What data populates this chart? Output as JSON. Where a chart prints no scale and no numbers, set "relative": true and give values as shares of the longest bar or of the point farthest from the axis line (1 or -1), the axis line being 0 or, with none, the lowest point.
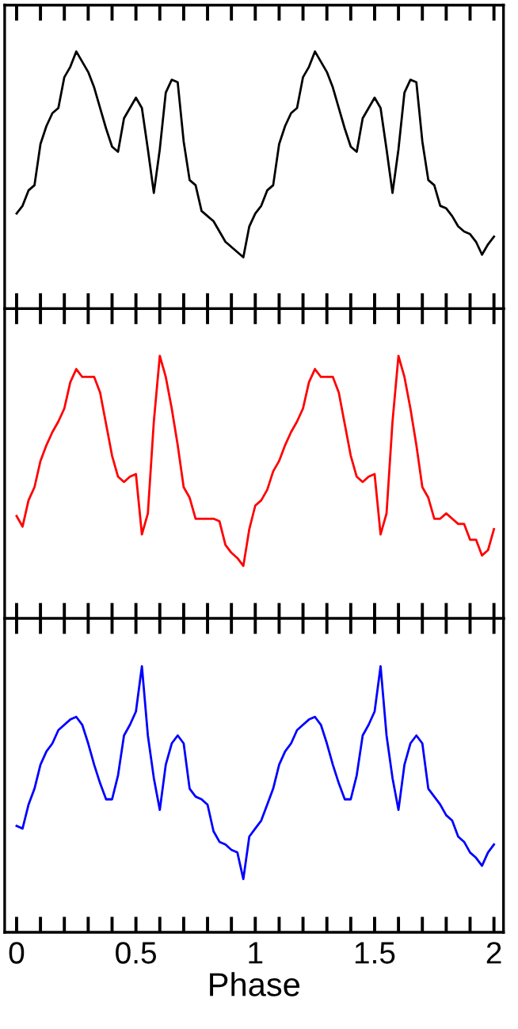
{
  "chart_data": [
    {
      "type": "line",
      "relative": true,
      "tick_labels": false,
      "grid": false,
      "legend": false,
      "marker": "none",
      "line_style": "solid",
      "xlim": [
        -0.05,
        2.04
      ],
      "xticks": [
        {
          "value": 0,
          "label": null
        },
        {
          "value": 0.1,
          "label": null
        },
        {
          "value": 0.2,
          "label": null
        },
        {
          "value": 0.3,
          "label": null
        },
        {
          "value": 0.4,
          "label": null
        },
        {
          "value": 0.5,
          "label": null
        },
        {
          "value": 0.6,
          "label": null
        },
        {
          "value": 0.7,
          "label": null
        },
        {
          "value": 0.8,
          "label": null
        },
        {
          "value": 0.9,
          "label": null
        },
        {
          "value": 1,
          "label": null
        },
        {
          "value": 1.1,
          "label": null
        },
        {
          "value": 1.2,
          "label": null
        },
        {
          "value": 1.3,
          "label": null
        },
        {
          "value": 1.4,
          "label": null
        },
        {
          "value": 1.5,
          "label": null
        },
        {
          "value": 1.6,
          "label": null
        },
        {
          "value": 1.7,
          "label": null
        },
        {
          "value": 1.8,
          "label": null
        },
        {
          "value": 1.9,
          "label": null
        },
        {
          "value": 2,
          "label": null
        }
      ],
      "x": [
        0,
        0.025,
        0.05,
        0.075,
        0.1,
        0.125,
        0.15,
        0.175,
        0.2,
        0.225,
        0.25,
        0.275,
        0.3,
        0.325,
        0.35,
        0.375,
        0.4,
        0.425,
        0.45,
        0.475,
        0.5,
        0.525,
        0.55,
        0.575,
        0.6,
        0.625,
        0.65,
        0.675,
        0.7,
        0.725,
        0.75,
        0.775,
        0.8,
        0.825,
        0.85,
        0.875,
        0.9,
        0.925,
        0.95,
        0.975,
        1,
        1.025,
        1.05,
        1.075,
        1.1,
        1.125,
        1.15,
        1.175,
        1.2,
        1.225,
        1.25,
        1.275,
        1.3,
        1.325,
        1.35,
        1.375,
        1.4,
        1.425,
        1.45,
        1.475,
        1.5,
        1.525,
        1.55,
        1.575,
        1.6,
        1.625,
        1.65,
        1.675,
        1.7,
        1.725,
        1.75,
        1.775,
        1.8,
        1.825,
        1.85,
        1.875,
        1.9,
        1.925,
        1.95,
        1.975,
        2
      ],
      "series": [
        {
          "color": "#000000",
          "values": [
            0.37,
            0.4,
            0.46,
            0.48,
            0.64,
            0.71,
            0.76,
            0.78,
            0.9,
            0.94,
            1.0,
            0.96,
            0.92,
            0.86,
            0.78,
            0.7,
            0.63,
            0.61,
            0.74,
            0.78,
            0.82,
            0.78,
            0.62,
            0.45,
            0.62,
            0.84,
            0.89,
            0.88,
            0.65,
            0.5,
            0.48,
            0.38,
            0.36,
            0.34,
            0.3,
            0.26,
            0.24,
            0.22,
            0.2,
            0.32,
            0.37,
            0.4,
            0.46,
            0.48,
            0.64,
            0.71,
            0.76,
            0.78,
            0.9,
            0.94,
            1.0,
            0.96,
            0.92,
            0.86,
            0.78,
            0.7,
            0.63,
            0.61,
            0.74,
            0.78,
            0.82,
            0.78,
            0.62,
            0.45,
            0.62,
            0.84,
            0.89,
            0.88,
            0.65,
            0.5,
            0.48,
            0.4,
            0.39,
            0.36,
            0.32,
            0.3,
            0.29,
            0.26,
            0.21,
            0.25,
            0.28
          ]
        }
      ]
    },
    {
      "type": "line",
      "relative": true,
      "tick_labels": false,
      "grid": false,
      "legend": false,
      "marker": "none",
      "line_style": "solid",
      "xlim": [
        -0.05,
        2.04
      ],
      "xticks": [
        {
          "value": 0,
          "label": null
        },
        {
          "value": 0.1,
          "label": null
        },
        {
          "value": 0.2,
          "label": null
        },
        {
          "value": 0.3,
          "label": null
        },
        {
          "value": 0.4,
          "label": null
        },
        {
          "value": 0.5,
          "label": null
        },
        {
          "value": 0.6,
          "label": null
        },
        {
          "value": 0.7,
          "label": null
        },
        {
          "value": 0.8,
          "label": null
        },
        {
          "value": 0.9,
          "label": null
        },
        {
          "value": 1,
          "label": null
        },
        {
          "value": 1.1,
          "label": null
        },
        {
          "value": 1.2,
          "label": null
        },
        {
          "value": 1.3,
          "label": null
        },
        {
          "value": 1.4,
          "label": null
        },
        {
          "value": 1.5,
          "label": null
        },
        {
          "value": 1.6,
          "label": null
        },
        {
          "value": 1.7,
          "label": null
        },
        {
          "value": 1.8,
          "label": null
        },
        {
          "value": 1.9,
          "label": null
        },
        {
          "value": 2,
          "label": null
        }
      ],
      "x": [
        0,
        0.025,
        0.05,
        0.075,
        0.1,
        0.125,
        0.15,
        0.175,
        0.2,
        0.225,
        0.25,
        0.275,
        0.3,
        0.325,
        0.35,
        0.375,
        0.4,
        0.425,
        0.45,
        0.475,
        0.5,
        0.525,
        0.55,
        0.575,
        0.6,
        0.625,
        0.65,
        0.675,
        0.7,
        0.725,
        0.75,
        0.775,
        0.8,
        0.825,
        0.85,
        0.875,
        0.9,
        0.925,
        0.95,
        0.975,
        1,
        1.025,
        1.05,
        1.075,
        1.1,
        1.125,
        1.15,
        1.175,
        1.2,
        1.225,
        1.25,
        1.275,
        1.3,
        1.325,
        1.35,
        1.375,
        1.4,
        1.425,
        1.45,
        1.475,
        1.5,
        1.525,
        1.55,
        1.575,
        1.6,
        1.625,
        1.65,
        1.675,
        1.7,
        1.725,
        1.75,
        1.775,
        1.8,
        1.825,
        1.85,
        1.875,
        1.9,
        1.925,
        1.95,
        1.975,
        2
      ],
      "series": [
        {
          "color": "#ff0000",
          "values": [
            0.39,
            0.35,
            0.45,
            0.5,
            0.6,
            0.66,
            0.71,
            0.75,
            0.8,
            0.9,
            0.95,
            0.92,
            0.92,
            0.92,
            0.86,
            0.74,
            0.62,
            0.54,
            0.52,
            0.54,
            0.55,
            0.32,
            0.4,
            0.75,
            1.0,
            0.92,
            0.8,
            0.66,
            0.5,
            0.46,
            0.38,
            0.38,
            0.38,
            0.38,
            0.37,
            0.28,
            0.25,
            0.23,
            0.2,
            0.34,
            0.43,
            0.45,
            0.49,
            0.56,
            0.6,
            0.66,
            0.71,
            0.75,
            0.8,
            0.9,
            0.95,
            0.92,
            0.92,
            0.92,
            0.86,
            0.74,
            0.62,
            0.54,
            0.52,
            0.54,
            0.55,
            0.32,
            0.4,
            0.75,
            1.0,
            0.92,
            0.8,
            0.66,
            0.5,
            0.46,
            0.38,
            0.38,
            0.4,
            0.38,
            0.36,
            0.36,
            0.3,
            0.3,
            0.24,
            0.26,
            0.34
          ]
        }
      ]
    },
    {
      "type": "line",
      "relative": true,
      "tick_labels": "x",
      "grid": false,
      "legend": false,
      "marker": "none",
      "line_style": "solid",
      "xlabel": "Phase",
      "xlim": [
        -0.05,
        2.04
      ],
      "xticks": [
        0,
        {
          "value": 0.1,
          "label": null
        },
        {
          "value": 0.2,
          "label": null
        },
        {
          "value": 0.3,
          "label": null
        },
        {
          "value": 0.4,
          "label": null
        },
        0.5,
        {
          "value": 0.6,
          "label": null
        },
        {
          "value": 0.7,
          "label": null
        },
        {
          "value": 0.8,
          "label": null
        },
        {
          "value": 0.9,
          "label": null
        },
        1,
        {
          "value": 1.1,
          "label": null
        },
        {
          "value": 1.2,
          "label": null
        },
        {
          "value": 1.3,
          "label": null
        },
        {
          "value": 1.4,
          "label": null
        },
        1.5,
        {
          "value": 1.6,
          "label": null
        },
        {
          "value": 1.7,
          "label": null
        },
        {
          "value": 1.8,
          "label": null
        },
        {
          "value": 1.9,
          "label": null
        },
        2
      ],
      "x": [
        0,
        0.025,
        0.05,
        0.075,
        0.1,
        0.125,
        0.15,
        0.175,
        0.2,
        0.225,
        0.25,
        0.275,
        0.3,
        0.325,
        0.35,
        0.375,
        0.4,
        0.425,
        0.45,
        0.475,
        0.5,
        0.525,
        0.55,
        0.575,
        0.6,
        0.625,
        0.65,
        0.675,
        0.7,
        0.725,
        0.75,
        0.775,
        0.8,
        0.825,
        0.85,
        0.875,
        0.9,
        0.925,
        0.95,
        0.975,
        1,
        1.025,
        1.05,
        1.075,
        1.1,
        1.125,
        1.15,
        1.175,
        1.2,
        1.225,
        1.25,
        1.275,
        1.3,
        1.325,
        1.35,
        1.375,
        1.4,
        1.425,
        1.45,
        1.475,
        1.5,
        1.525,
        1.55,
        1.575,
        1.6,
        1.625,
        1.65,
        1.675,
        1.7,
        1.725,
        1.75,
        1.775,
        1.8,
        1.825,
        1.85,
        1.875,
        1.9,
        1.925,
        1.95,
        1.975,
        2
      ],
      "series": [
        {
          "color": "#0000ff",
          "values": [
            0.4,
            0.39,
            0.48,
            0.54,
            0.63,
            0.68,
            0.71,
            0.76,
            0.78,
            0.8,
            0.81,
            0.78,
            0.71,
            0.63,
            0.56,
            0.5,
            0.5,
            0.59,
            0.74,
            0.78,
            0.83,
            1.0,
            0.74,
            0.58,
            0.46,
            0.63,
            0.71,
            0.74,
            0.71,
            0.54,
            0.51,
            0.5,
            0.48,
            0.38,
            0.34,
            0.33,
            0.31,
            0.3,
            0.2,
            0.36,
            0.39,
            0.42,
            0.48,
            0.54,
            0.63,
            0.68,
            0.71,
            0.76,
            0.78,
            0.8,
            0.81,
            0.78,
            0.71,
            0.63,
            0.56,
            0.5,
            0.5,
            0.59,
            0.74,
            0.78,
            0.83,
            1.0,
            0.74,
            0.58,
            0.46,
            0.63,
            0.71,
            0.74,
            0.71,
            0.54,
            0.51,
            0.48,
            0.44,
            0.42,
            0.36,
            0.34,
            0.3,
            0.28,
            0.25,
            0.3,
            0.33
          ]
        }
      ]
    }
  ]
}
